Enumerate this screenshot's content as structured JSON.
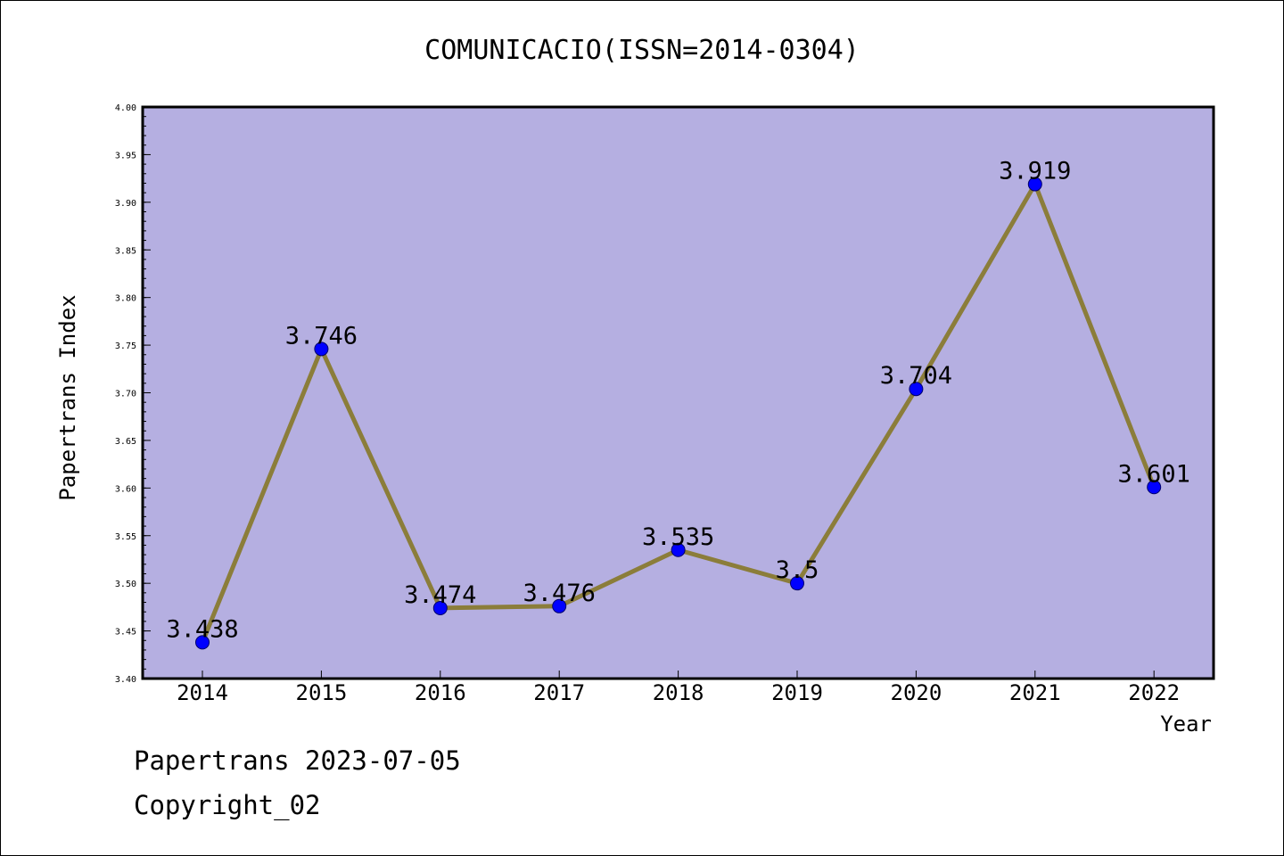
{
  "chart_data": {
    "type": "line",
    "title": "COMUNICACIO(ISSN=2014-0304)",
    "xlabel": "Year",
    "ylabel": "Papertrans Index",
    "categories": [
      "2014",
      "2015",
      "2016",
      "2017",
      "2018",
      "2019",
      "2020",
      "2021",
      "2022"
    ],
    "values": [
      3.438,
      3.746,
      3.474,
      3.476,
      3.535,
      3.5,
      3.704,
      3.919,
      3.601
    ],
    "value_labels": [
      "3.438",
      "3.746",
      "3.474",
      "3.476",
      "3.535",
      "3.5",
      "3.704",
      "3.919",
      "3.601"
    ],
    "ylim": [
      3.4,
      4.0
    ],
    "y_ticks": [
      "3.40",
      "3.45",
      "3.50",
      "3.55",
      "3.60",
      "3.65",
      "3.70",
      "3.75",
      "3.80",
      "3.85",
      "3.90",
      "3.95",
      "4.00"
    ],
    "grid": false,
    "legend": "none",
    "colors": {
      "plot_background": "#b5afe1",
      "line": "#8b7d3a",
      "marker": "#0000ff"
    }
  },
  "footer": {
    "line1": "Papertrans 2023-07-05",
    "line2": "Copyright_02"
  }
}
